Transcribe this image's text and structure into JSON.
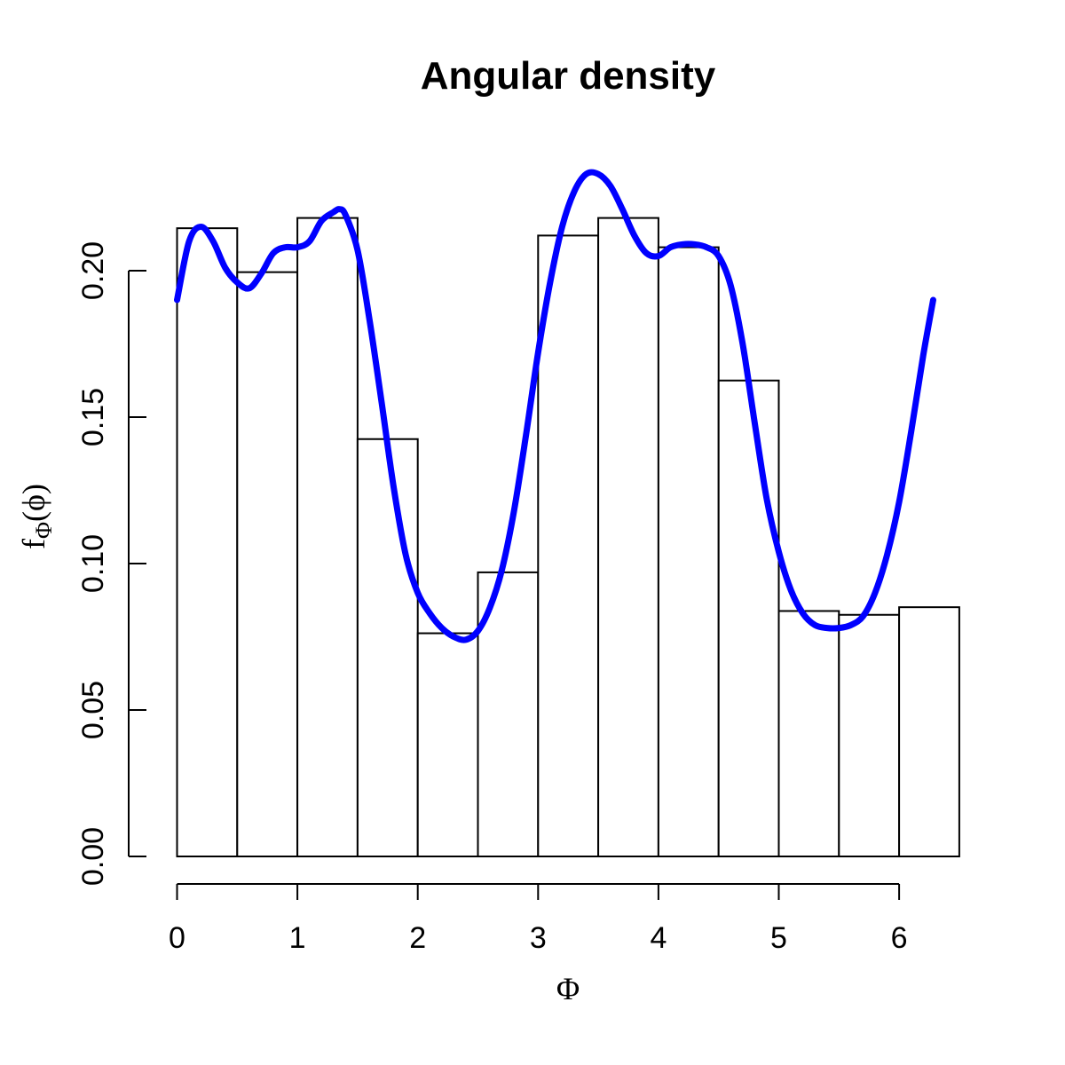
{
  "chart_data": {
    "type": "bar",
    "title": "Angular density",
    "xlabel": "Φ",
    "ylabel": {
      "base": "f",
      "sub": "Φ",
      "arg": "(ϕ)"
    },
    "xlim": [
      0,
      6.5
    ],
    "ylim": [
      0,
      0.24
    ],
    "x_ticks": [
      0,
      1,
      2,
      3,
      4,
      5,
      6
    ],
    "x_tick_labels": [
      "0",
      "1",
      "2",
      "3",
      "4",
      "5",
      "6"
    ],
    "y_ticks": [
      0,
      0.05,
      0.1,
      0.15,
      0.2
    ],
    "y_tick_labels": [
      "0.00",
      "0.05",
      "0.10",
      "0.15",
      "0.20"
    ],
    "grid": false,
    "bins": [
      {
        "left": 0.0,
        "right": 0.5,
        "value": 0.2145
      },
      {
        "left": 0.5,
        "right": 1.0,
        "value": 0.1995
      },
      {
        "left": 1.0,
        "right": 1.5,
        "value": 0.218
      },
      {
        "left": 1.5,
        "right": 2.0,
        "value": 0.1425
      },
      {
        "left": 2.0,
        "right": 2.5,
        "value": 0.0762
      },
      {
        "left": 2.5,
        "right": 3.0,
        "value": 0.097
      },
      {
        "left": 3.0,
        "right": 3.5,
        "value": 0.212
      },
      {
        "left": 3.5,
        "right": 4.0,
        "value": 0.218
      },
      {
        "left": 4.0,
        "right": 4.5,
        "value": 0.208
      },
      {
        "left": 4.5,
        "right": 5.0,
        "value": 0.1625
      },
      {
        "left": 5.0,
        "right": 5.5,
        "value": 0.0838
      },
      {
        "left": 5.5,
        "right": 6.0,
        "value": 0.0825
      },
      {
        "left": 6.0,
        "right": 6.5,
        "value": 0.0851
      }
    ],
    "series": [
      {
        "color": "#0000ff",
        "x": [
          0,
          0.1,
          0.2,
          0.3,
          0.4,
          0.5,
          0.6,
          0.7,
          0.8,
          0.9,
          1.0,
          1.1,
          1.2,
          1.3,
          1.35,
          1.4,
          1.5,
          1.6,
          1.7,
          1.8,
          1.9,
          2.0,
          2.1,
          2.2,
          2.3,
          2.4,
          2.5,
          2.6,
          2.7,
          2.8,
          2.9,
          3.0,
          3.1,
          3.2,
          3.3,
          3.4,
          3.5,
          3.6,
          3.7,
          3.8,
          3.9,
          4.0,
          4.1,
          4.2,
          4.3,
          4.4,
          4.5,
          4.6,
          4.7,
          4.8,
          4.9,
          5.0,
          5.1,
          5.2,
          5.3,
          5.4,
          5.5,
          5.6,
          5.7,
          5.8,
          5.9,
          6.0,
          6.1,
          6.2,
          6.283
        ],
        "y": [
          0.19,
          0.21,
          0.215,
          0.21,
          0.201,
          0.196,
          0.194,
          0.199,
          0.206,
          0.208,
          0.208,
          0.21,
          0.217,
          0.22,
          0.221,
          0.219,
          0.207,
          0.183,
          0.155,
          0.126,
          0.103,
          0.09,
          0.083,
          0.078,
          0.075,
          0.074,
          0.077,
          0.085,
          0.098,
          0.118,
          0.144,
          0.172,
          0.196,
          0.215,
          0.227,
          0.233,
          0.233,
          0.229,
          0.221,
          0.212,
          0.206,
          0.205,
          0.208,
          0.209,
          0.209,
          0.208,
          0.205,
          0.195,
          0.175,
          0.148,
          0.122,
          0.104,
          0.091,
          0.083,
          0.079,
          0.078,
          0.078,
          0.079,
          0.082,
          0.09,
          0.103,
          0.121,
          0.145,
          0.171,
          0.19
        ]
      }
    ]
  }
}
